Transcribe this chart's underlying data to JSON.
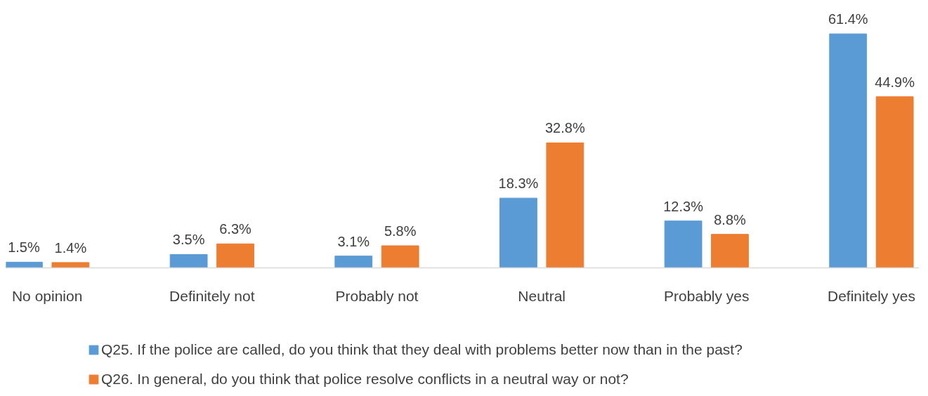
{
  "chart_data": {
    "type": "bar",
    "categories": [
      "No opinion",
      "Definitely not",
      "Probably not",
      "Neutral",
      "Probably yes",
      "Definitely yes"
    ],
    "series": [
      {
        "name": "Q25. If the police are called, do you think that they deal with problems better now than in the past?",
        "color": "#5b9bd5",
        "values": [
          1.5,
          3.5,
          3.1,
          18.3,
          12.3,
          61.4
        ],
        "value_labels": [
          "1.5%",
          "3.5%",
          "3.1%",
          "18.3%",
          "12.3%",
          "61.4%"
        ]
      },
      {
        "name": "Q26. In general, do you think that police resolve conflicts in a neutral way or not?",
        "color": "#ed7d31",
        "values": [
          1.4,
          6.3,
          5.8,
          32.8,
          8.8,
          44.9
        ],
        "value_labels": [
          "1.4%",
          "6.3%",
          "5.8%",
          "32.8%",
          "8.8%",
          "44.9%"
        ]
      }
    ],
    "legend": "bottom",
    "tick_labels": "x"
  }
}
